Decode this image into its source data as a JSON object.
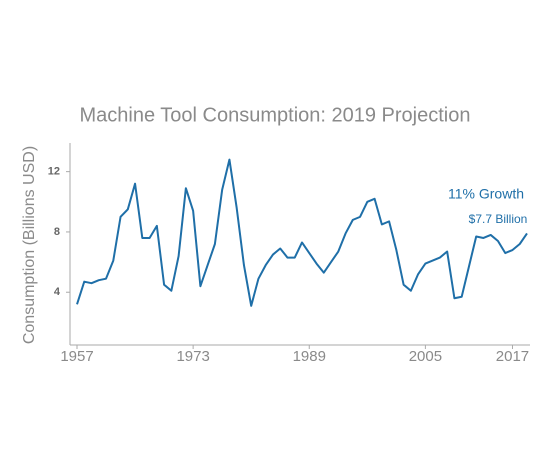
{
  "chart_data": {
    "type": "line",
    "title": "Machine Tool Consumption: 2019 Projection",
    "ylabel": "Consumption (Billions USD)",
    "annotations": [
      "11% Growth",
      "$7.7 Billion"
    ],
    "xlim": [
      1957,
      2019
    ],
    "xticks": [
      1957,
      1973,
      1989,
      2005,
      2017
    ],
    "ylim": [
      0.5,
      13.9
    ],
    "yticks": [
      4,
      8,
      12
    ],
    "grid": false,
    "x": [
      1957,
      1958,
      1959,
      1960,
      1961,
      1962,
      1963,
      1964,
      1965,
      1966,
      1967,
      1968,
      1969,
      1970,
      1971,
      1972,
      1973,
      1974,
      1975,
      1976,
      1977,
      1978,
      1979,
      1980,
      1981,
      1982,
      1983,
      1984,
      1985,
      1986,
      1987,
      1988,
      1989,
      1990,
      1991,
      1992,
      1993,
      1994,
      1995,
      1996,
      1997,
      1998,
      1999,
      2000,
      2001,
      2002,
      2003,
      2004,
      2005,
      2006,
      2007,
      2008,
      2009,
      2010,
      2011,
      2012,
      2013,
      2014,
      2015,
      2016,
      2017,
      2018,
      2019
    ],
    "series": [
      {
        "color": "#1f6fa8",
        "values": [
          3.2,
          4.7,
          4.6,
          4.8,
          4.9,
          6.1,
          9.0,
          9.5,
          11.2,
          7.6,
          7.6,
          8.4,
          4.5,
          4.1,
          6.4,
          10.9,
          9.4,
          4.4,
          5.8,
          7.2,
          10.8,
          12.8,
          9.6,
          5.8,
          3.1,
          4.9,
          5.8,
          6.5,
          6.9,
          6.3,
          6.3,
          7.3,
          6.6,
          5.9,
          5.3,
          6.0,
          6.7,
          7.9,
          8.8,
          9.0,
          10.0,
          10.2,
          8.5,
          8.7,
          6.8,
          4.5,
          4.1,
          5.2,
          5.9,
          6.1,
          6.3,
          6.7,
          3.6,
          3.7,
          5.7,
          7.7,
          7.6,
          7.8,
          7.4,
          6.6,
          6.8,
          7.2,
          7.9
        ]
      }
    ]
  }
}
